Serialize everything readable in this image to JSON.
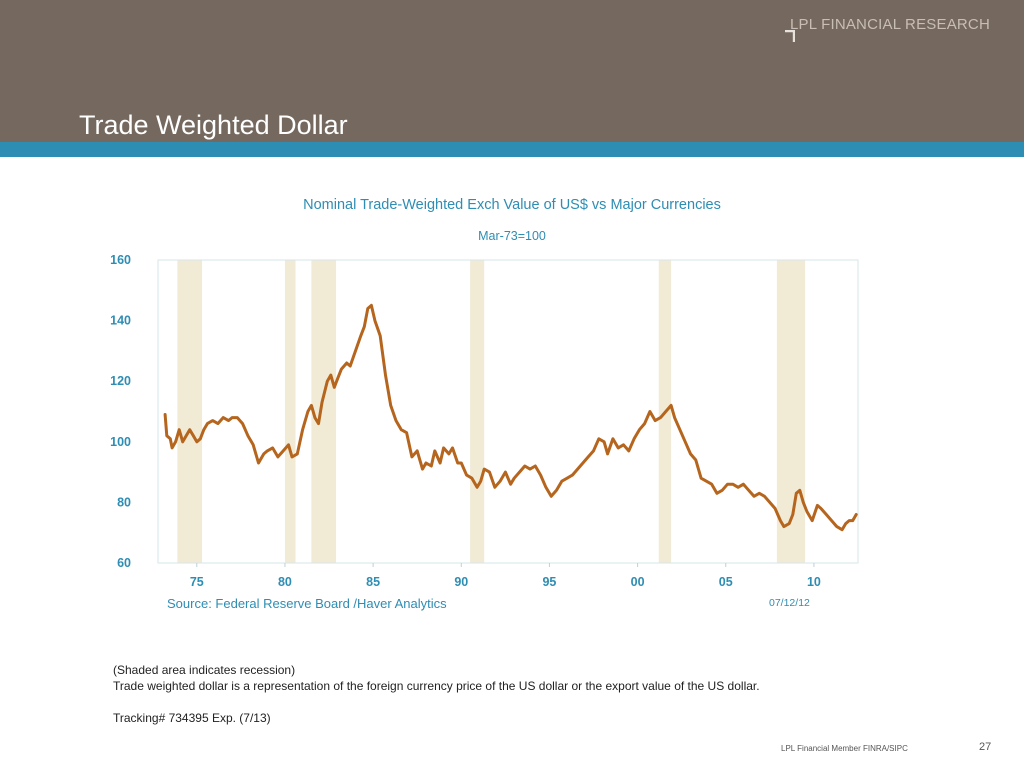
{
  "header": {
    "brand": "LPL FINANCIAL RESEARCH",
    "title": "Trade Weighted Dollar",
    "background_color": "#75695f",
    "stripe_color": "#2e8db3"
  },
  "chart_data": {
    "type": "line",
    "title": "Nominal Trade-Weighted Exch Value of US$ vs Major Currencies",
    "subtitle": "Mar-73=100",
    "xlabel": "",
    "ylabel": "",
    "xlim": [
      1972.8,
      2012.5
    ],
    "ylim": [
      60,
      160
    ],
    "x_ticks": [
      1975,
      1980,
      1985,
      1990,
      1995,
      2000,
      2005,
      2010
    ],
    "x_tick_labels": [
      "75",
      "80",
      "85",
      "90",
      "95",
      "00",
      "05",
      "10"
    ],
    "y_ticks": [
      60,
      80,
      100,
      120,
      140,
      160
    ],
    "y_tick_labels": [
      "60",
      "80",
      "100",
      "120",
      "140",
      "160"
    ],
    "grid": false,
    "line_color": "#b5651d",
    "recession_color": "#f1ebd6",
    "recessions": [
      [
        1973.9,
        1975.3
      ],
      [
        1980.0,
        1980.6
      ],
      [
        1981.5,
        1982.9
      ],
      [
        1990.5,
        1991.3
      ],
      [
        2001.2,
        2001.9
      ],
      [
        2007.9,
        2009.5
      ]
    ],
    "series": [
      {
        "x": [
          1973.2,
          1973.3,
          1973.5,
          1973.6,
          1973.8,
          1974.0,
          1974.2,
          1974.4,
          1974.6,
          1974.8,
          1975.0,
          1975.2,
          1975.4,
          1975.6,
          1975.9,
          1976.2,
          1976.5,
          1976.8,
          1977.0,
          1977.3,
          1977.6,
          1977.9,
          1978.2,
          1978.5,
          1978.8,
          1979.0,
          1979.3,
          1979.6,
          1979.9,
          1980.2,
          1980.4,
          1980.7,
          1981.0,
          1981.3,
          1981.5,
          1981.7,
          1981.9,
          1982.1,
          1982.4,
          1982.6,
          1982.8,
          1983.0,
          1983.2,
          1983.5,
          1983.7,
          1984.0,
          1984.3,
          1984.5,
          1984.7,
          1984.9,
          1985.1,
          1985.4,
          1985.7,
          1986.0,
          1986.3,
          1986.6,
          1986.9,
          1987.2,
          1987.5,
          1987.8,
          1988.0,
          1988.3,
          1988.5,
          1988.8,
          1989.0,
          1989.3,
          1989.5,
          1989.8,
          1990.0,
          1990.3,
          1990.6,
          1990.9,
          1991.1,
          1991.3,
          1991.6,
          1991.9,
          1992.2,
          1992.5,
          1992.8,
          1993.0,
          1993.3,
          1993.6,
          1993.9,
          1994.2,
          1994.5,
          1994.8,
          1995.1,
          1995.4,
          1995.7,
          1996.0,
          1996.3,
          1996.6,
          1996.9,
          1997.2,
          1997.5,
          1997.8,
          1998.1,
          1998.3,
          1998.6,
          1998.9,
          1999.2,
          1999.5,
          1999.8,
          2000.1,
          2000.4,
          2000.7,
          2001.0,
          2001.3,
          2001.6,
          2001.9,
          2002.1,
          2002.4,
          2002.7,
          2003.0,
          2003.3,
          2003.6,
          2003.9,
          2004.2,
          2004.5,
          2004.8,
          2005.1,
          2005.4,
          2005.7,
          2006.0,
          2006.3,
          2006.6,
          2006.9,
          2007.2,
          2007.5,
          2007.8,
          2008.1,
          2008.3,
          2008.6,
          2008.8,
          2009.0,
          2009.2,
          2009.4,
          2009.6,
          2009.9,
          2010.2,
          2010.4,
          2010.7,
          2011.0,
          2011.3,
          2011.6,
          2011.8,
          2012.0,
          2012.2,
          2012.4
        ],
        "y": [
          109,
          102,
          101,
          98,
          100,
          104,
          100,
          102,
          104,
          102,
          100,
          101,
          104,
          106,
          107,
          106,
          108,
          107,
          108,
          108,
          106,
          102,
          99,
          93,
          96,
          97,
          98,
          95,
          97,
          99,
          95,
          96,
          104,
          110,
          112,
          108,
          106,
          113,
          120,
          122,
          118,
          121,
          124,
          126,
          125,
          130,
          135,
          138,
          144,
          145,
          140,
          135,
          122,
          112,
          107,
          104,
          103,
          95,
          97,
          91,
          93,
          92,
          97,
          93,
          98,
          96,
          98,
          93,
          93,
          89,
          88,
          85,
          87,
          91,
          90,
          85,
          87,
          90,
          86,
          88,
          90,
          92,
          91,
          92,
          89,
          85,
          82,
          84,
          87,
          88,
          89,
          91,
          93,
          95,
          97,
          101,
          100,
          96,
          101,
          98,
          99,
          97,
          101,
          104,
          106,
          110,
          107,
          108,
          110,
          112,
          108,
          104,
          100,
          96,
          94,
          88,
          87,
          86,
          83,
          84,
          86,
          86,
          85,
          86,
          84,
          82,
          83,
          82,
          80,
          78,
          74,
          72,
          73,
          76,
          83,
          84,
          80,
          77,
          74,
          79,
          78,
          76,
          74,
          72,
          71,
          73,
          74,
          74,
          76
        ]
      }
    ]
  },
  "source": "Source:  Federal Reserve Board /Haver Analytics",
  "chart_date": "07/12/12",
  "notes": [
    "(Shaded area indicates recession)",
    "Trade weighted dollar is a representation of the foreign currency price of the US dollar or the export value of the US dollar.",
    "",
    "Tracking# 734395 Exp. (7/13)"
  ],
  "footer": {
    "member_text": "LPL Financial Member FINRA/SIPC",
    "page_number": "27"
  }
}
